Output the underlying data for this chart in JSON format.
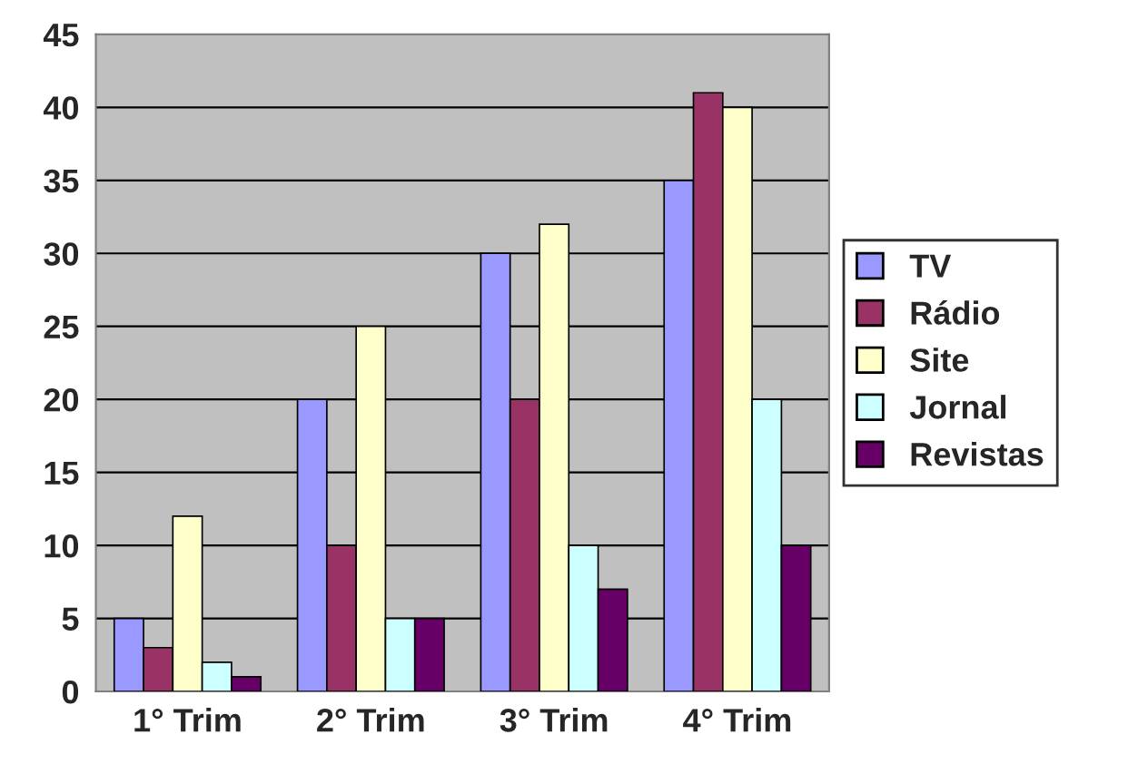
{
  "chart_data": {
    "type": "bar",
    "categories": [
      "1° Trim",
      "2° Trim",
      "3° Trim",
      "4° Trim"
    ],
    "series": [
      {
        "name": "TV",
        "color": "#9999ff",
        "values": [
          5,
          20,
          30,
          35
        ]
      },
      {
        "name": "Rádio",
        "color": "#993366",
        "values": [
          3,
          10,
          20,
          41
        ]
      },
      {
        "name": "Site",
        "color": "#ffffcc",
        "values": [
          12,
          25,
          32,
          40
        ]
      },
      {
        "name": "Jornal",
        "color": "#ccffff",
        "values": [
          2,
          5,
          10,
          20
        ]
      },
      {
        "name": "Revistas",
        "color": "#660066",
        "values": [
          1,
          5,
          7,
          10
        ]
      }
    ],
    "ylim": [
      0,
      45
    ],
    "yticks": [
      0,
      5,
      10,
      15,
      20,
      25,
      30,
      35,
      40,
      45
    ],
    "grid": "y",
    "legend": "right"
  }
}
